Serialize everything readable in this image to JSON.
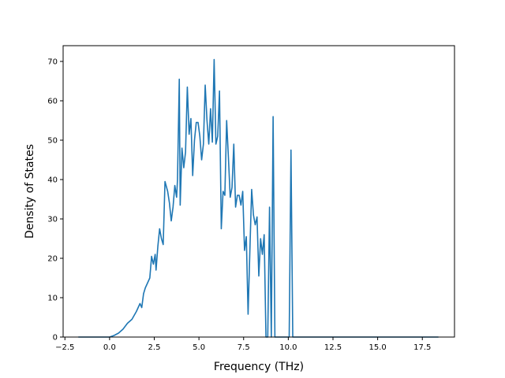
{
  "chart_data": {
    "type": "line",
    "title": "",
    "xlabel": "Frequency (THz)",
    "ylabel": "Density of States",
    "xlim": [
      -2.6,
      19.3
    ],
    "ylim": [
      0,
      74
    ],
    "xticks": [
      -2.5,
      0.0,
      2.5,
      5.0,
      7.5,
      10.0,
      12.5,
      15.0,
      17.5
    ],
    "xtick_labels": [
      "−2.5",
      "0.0",
      "2.5",
      "5.0",
      "7.5",
      "10.0",
      "12.5",
      "15.0",
      "17.5"
    ],
    "yticks": [
      0,
      10,
      20,
      30,
      40,
      50,
      60,
      70
    ],
    "ytick_labels": [
      "0",
      "10",
      "20",
      "30",
      "40",
      "50",
      "60",
      "70"
    ],
    "grid": false,
    "legend": "none",
    "series": [
      {
        "color": "#1f77b4",
        "x": [
          -1.75,
          -0.5,
          0.0,
          0.25,
          0.5,
          0.75,
          1.0,
          1.25,
          1.5,
          1.6,
          1.7,
          1.8,
          1.9,
          2.0,
          2.1,
          2.25,
          2.35,
          2.45,
          2.55,
          2.6,
          2.7,
          2.8,
          2.9,
          3.0,
          3.1,
          3.25,
          3.35,
          3.45,
          3.55,
          3.65,
          3.75,
          3.8,
          3.9,
          3.95,
          4.05,
          4.15,
          4.25,
          4.35,
          4.45,
          4.55,
          4.65,
          4.75,
          4.85,
          4.95,
          5.05,
          5.15,
          5.25,
          5.35,
          5.45,
          5.55,
          5.65,
          5.75,
          5.85,
          5.95,
          6.05,
          6.15,
          6.25,
          6.35,
          6.45,
          6.55,
          6.65,
          6.75,
          6.85,
          6.95,
          7.05,
          7.15,
          7.25,
          7.35,
          7.45,
          7.55,
          7.65,
          7.75,
          7.85,
          7.95,
          8.05,
          8.15,
          8.25,
          8.35,
          8.45,
          8.55,
          8.65,
          8.75,
          8.85,
          8.95,
          9.05,
          9.15,
          9.25,
          9.35,
          9.45,
          9.55,
          9.65,
          9.75,
          9.85,
          9.95,
          10.05,
          10.15,
          10.25,
          10.35,
          10.45,
          12.0,
          15.0,
          18.4
        ],
        "y": [
          0,
          0,
          0,
          0.4,
          1.0,
          2.0,
          3.5,
          4.5,
          6.5,
          7.5,
          8.5,
          7.5,
          11.0,
          12.5,
          13.5,
          15.0,
          20.5,
          18.5,
          21.0,
          17.0,
          23.0,
          27.5,
          25.0,
          23.5,
          39.5,
          37.0,
          34.0,
          29.5,
          33.0,
          38.5,
          35.5,
          40.0,
          65.5,
          33.5,
          48.0,
          43.0,
          47.0,
          63.5,
          51.5,
          55.5,
          41.0,
          50.0,
          54.5,
          54.5,
          51.0,
          45.0,
          49.0,
          64.0,
          55.0,
          49.0,
          58.0,
          49.5,
          70.5,
          49.0,
          51.0,
          62.5,
          27.5,
          37.0,
          36.0,
          55.0,
          45.5,
          35.5,
          38.0,
          49.0,
          33.0,
          36.0,
          36.0,
          33.5,
          37.0,
          22.0,
          25.5,
          5.8,
          22.0,
          37.5,
          31.0,
          28.5,
          30.5,
          15.5,
          25.0,
          21.0,
          26.0,
          0,
          0,
          33.0,
          0,
          56.0,
          0,
          0,
          0,
          0,
          0,
          0,
          0,
          0,
          0,
          47.5,
          0,
          0,
          0,
          0,
          0,
          0
        ]
      }
    ]
  }
}
